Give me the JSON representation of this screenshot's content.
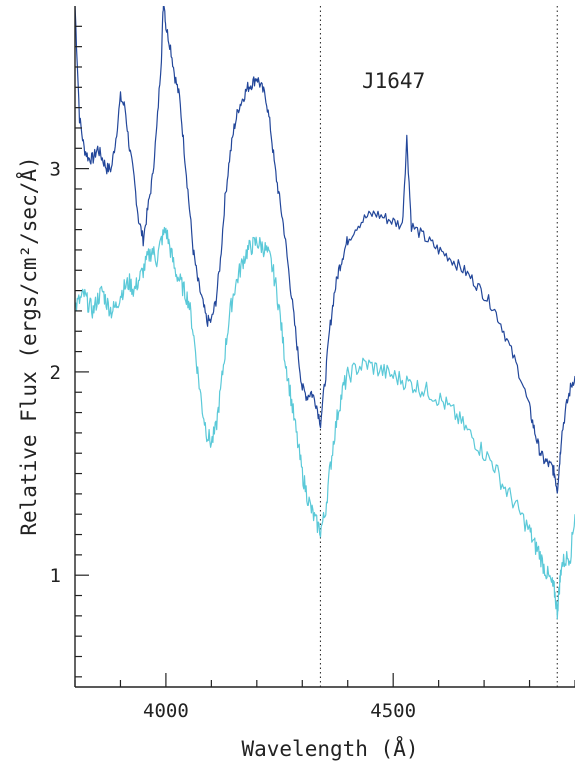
{
  "chart_data": {
    "type": "line",
    "title": "",
    "annotation": "J1647",
    "xlabel": "Wavelength (Å)",
    "ylabel": "Relative Flux (ergs/cm²/sec/Å)",
    "xlim": [
      3800,
      4900
    ],
    "ylim": [
      0.45,
      3.8
    ],
    "xticks": [
      4000,
      4500
    ],
    "xtick_labels": [
      "4000",
      "4500"
    ],
    "yticks": [
      1,
      2,
      3
    ],
    "ytick_labels": [
      "1",
      "2",
      "3"
    ],
    "vertical_lines": [
      4340,
      4861
    ],
    "grid": false,
    "legend": "none",
    "series": [
      {
        "color": "#23479a",
        "x": [
          3800,
          3810,
          3820,
          3830,
          3840,
          3850,
          3860,
          3870,
          3880,
          3890,
          3900,
          3910,
          3920,
          3930,
          3940,
          3950,
          3960,
          3970,
          3980,
          3990,
          3995,
          4000,
          4010,
          4020,
          4030,
          4040,
          4050,
          4060,
          4070,
          4080,
          4090,
          4100,
          4110,
          4120,
          4130,
          4140,
          4150,
          4160,
          4170,
          4180,
          4190,
          4200,
          4210,
          4220,
          4230,
          4240,
          4250,
          4260,
          4270,
          4280,
          4290,
          4300,
          4310,
          4320,
          4330,
          4340,
          4350,
          4360,
          4370,
          4380,
          4390,
          4400,
          4420,
          4440,
          4460,
          4480,
          4500,
          4520,
          4530,
          4540,
          4560,
          4580,
          4600,
          4620,
          4640,
          4660,
          4680,
          4700,
          4720,
          4740,
          4760,
          4780,
          4800,
          4810,
          4820,
          4830,
          4840,
          4850,
          4855,
          4861,
          4866,
          4870,
          4880,
          4890,
          4900
        ],
        "y": [
          3.8,
          3.25,
          3.1,
          3.05,
          3.05,
          3.1,
          3.05,
          3.0,
          3.0,
          3.15,
          3.35,
          3.3,
          3.1,
          2.95,
          2.75,
          2.65,
          2.8,
          2.95,
          3.2,
          3.55,
          3.85,
          3.7,
          3.6,
          3.45,
          3.35,
          3.1,
          2.85,
          2.6,
          2.45,
          2.35,
          2.25,
          2.25,
          2.35,
          2.55,
          2.85,
          3.05,
          3.2,
          3.3,
          3.35,
          3.4,
          3.42,
          3.45,
          3.4,
          3.35,
          3.2,
          3.0,
          2.85,
          2.7,
          2.5,
          2.3,
          2.1,
          1.92,
          1.88,
          1.9,
          1.85,
          1.75,
          1.95,
          2.2,
          2.38,
          2.5,
          2.58,
          2.65,
          2.72,
          2.76,
          2.78,
          2.76,
          2.74,
          2.72,
          3.15,
          2.72,
          2.68,
          2.64,
          2.6,
          2.57,
          2.53,
          2.49,
          2.44,
          2.38,
          2.32,
          2.22,
          2.1,
          1.98,
          1.82,
          1.72,
          1.63,
          1.57,
          1.55,
          1.53,
          1.5,
          1.42,
          1.55,
          1.68,
          1.82,
          1.92,
          1.98
        ]
      },
      {
        "color": "#5bc9d8",
        "x": [
          3800,
          3810,
          3820,
          3830,
          3840,
          3850,
          3860,
          3870,
          3880,
          3890,
          3900,
          3910,
          3920,
          3930,
          3940,
          3950,
          3960,
          3970,
          3980,
          3990,
          4000,
          4010,
          4020,
          4030,
          4040,
          4050,
          4060,
          4070,
          4080,
          4090,
          4100,
          4110,
          4120,
          4130,
          4140,
          4150,
          4160,
          4170,
          4180,
          4190,
          4200,
          4210,
          4220,
          4230,
          4240,
          4250,
          4260,
          4270,
          4280,
          4290,
          4300,
          4310,
          4320,
          4330,
          4340,
          4350,
          4360,
          4370,
          4380,
          4390,
          4400,
          4420,
          4440,
          4460,
          4480,
          4500,
          4520,
          4540,
          4560,
          4580,
          4600,
          4620,
          4640,
          4660,
          4680,
          4700,
          4720,
          4740,
          4760,
          4780,
          4800,
          4810,
          4820,
          4830,
          4840,
          4850,
          4855,
          4861,
          4866,
          4870,
          4880,
          4890,
          4900
        ],
        "y": [
          2.32,
          2.35,
          2.38,
          2.33,
          2.3,
          2.36,
          2.4,
          2.34,
          2.3,
          2.32,
          2.38,
          2.42,
          2.44,
          2.4,
          2.45,
          2.5,
          2.56,
          2.6,
          2.55,
          2.65,
          2.7,
          2.6,
          2.5,
          2.45,
          2.4,
          2.35,
          2.2,
          2.0,
          1.82,
          1.7,
          1.65,
          1.72,
          1.9,
          2.1,
          2.28,
          2.4,
          2.48,
          2.55,
          2.6,
          2.62,
          2.64,
          2.62,
          2.6,
          2.55,
          2.45,
          2.3,
          2.1,
          1.95,
          1.8,
          1.65,
          1.5,
          1.4,
          1.32,
          1.26,
          1.22,
          1.3,
          1.5,
          1.68,
          1.82,
          1.92,
          1.98,
          2.02,
          2.04,
          2.02,
          2.0,
          1.98,
          1.96,
          1.94,
          1.92,
          1.9,
          1.87,
          1.83,
          1.78,
          1.72,
          1.66,
          1.6,
          1.55,
          1.45,
          1.38,
          1.3,
          1.22,
          1.15,
          1.12,
          1.05,
          1.0,
          0.95,
          0.92,
          0.82,
          0.95,
          1.05,
          1.08,
          1.1,
          1.3
        ]
      }
    ]
  }
}
